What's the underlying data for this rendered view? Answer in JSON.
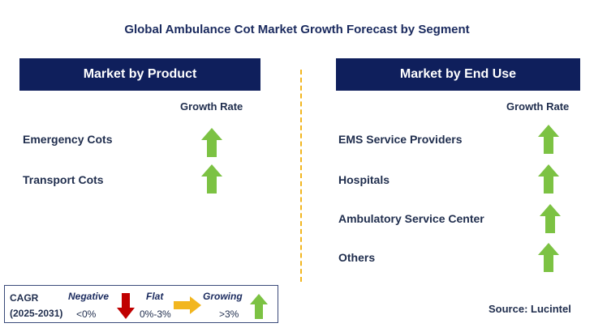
{
  "title": "Global Ambulance Cot Market Growth Forecast by Segment",
  "left_panel": {
    "header": "Market by Product",
    "growth_rate_label": "Growth Rate",
    "items": [
      {
        "label": "Emergency Cots",
        "trend": "growing"
      },
      {
        "label": "Transport Cots",
        "trend": "growing"
      }
    ]
  },
  "right_panel": {
    "header": "Market by End Use",
    "growth_rate_label": "Growth Rate",
    "items": [
      {
        "label": "EMS Service Providers",
        "trend": "growing"
      },
      {
        "label": "Hospitals",
        "trend": "growing"
      },
      {
        "label": "Ambulatory Service Center",
        "trend": "growing"
      },
      {
        "label": "Others",
        "trend": "growing"
      }
    ]
  },
  "legend": {
    "cagr_label": "CAGR",
    "period": "(2025-2031)",
    "negative_label": "Negative",
    "negative_range": "<0%",
    "flat_label": "Flat",
    "flat_range": "0%-3%",
    "growing_label": "Growing",
    "growing_range": ">3%"
  },
  "source": "Source: Lucintel",
  "colors": {
    "header_bg": "#0f1f5c",
    "growing_arrow": "#7cc243",
    "negative_arrow": "#c00000",
    "flat_arrow": "#f2b61f"
  },
  "icons": {
    "growing": "up-arrow-icon",
    "negative": "down-arrow-icon",
    "flat": "right-arrow-icon"
  }
}
